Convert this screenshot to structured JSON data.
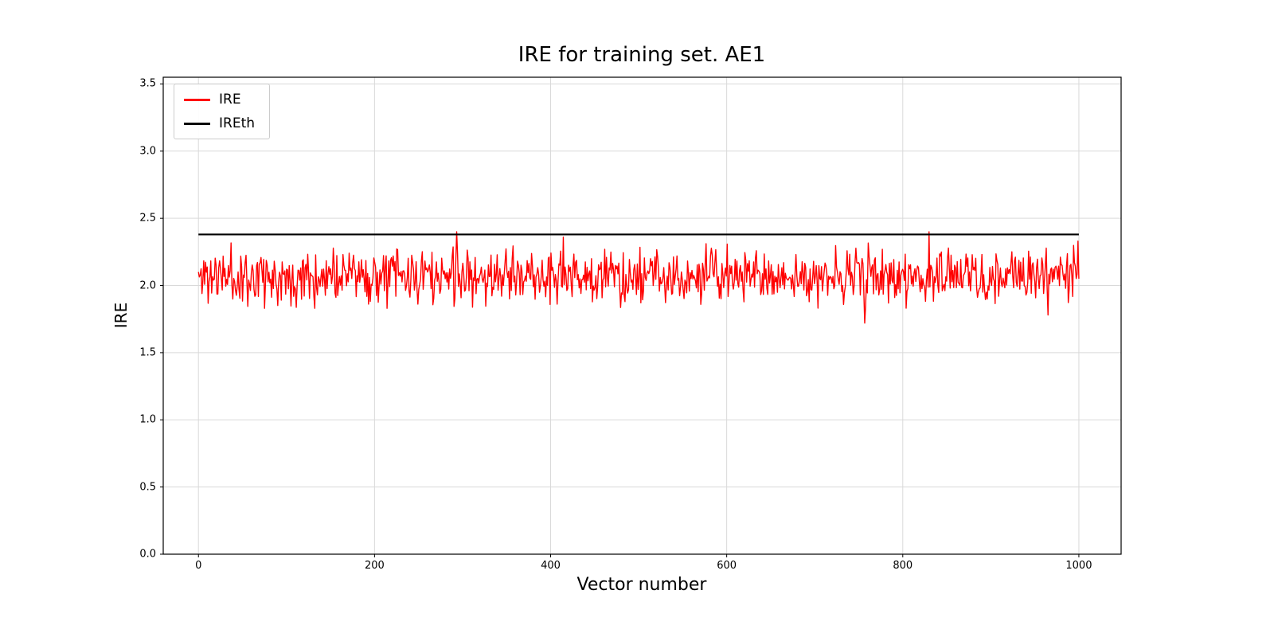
{
  "chart_data": {
    "type": "line",
    "title": "IRE for training set. AE1",
    "xlabel": "Vector number",
    "ylabel": "IRE",
    "xlim": [
      -40,
      1048
    ],
    "ylim": [
      0,
      3.55
    ],
    "xtick_values": [
      0,
      200,
      400,
      600,
      800,
      1000
    ],
    "xtick_labels": [
      "0",
      "200",
      "400",
      "600",
      "800",
      "1000"
    ],
    "ytick_values": [
      0,
      0.5,
      1.0,
      1.5,
      2.0,
      2.5,
      3.0,
      3.5
    ],
    "ytick_labels": [
      "0.0",
      "0.5",
      "1.0",
      "1.5",
      "2.0",
      "2.5",
      "3.0",
      "3.5"
    ],
    "grid": true,
    "grid_color": "#d9d9d9",
    "axes_edge_color": "#000000",
    "legend": {
      "position": "upper-left",
      "entries": [
        {
          "label": "IRE",
          "color": "#ff0000"
        },
        {
          "label": "IREth",
          "color": "#000000"
        }
      ]
    },
    "series": [
      {
        "name": "IRE",
        "color": "#ff0000",
        "line_width": 1.4,
        "n_points": 1000,
        "x_start": 0,
        "x_end": 1000,
        "mean": 2.07,
        "typical_band": [
          1.9,
          2.3
        ],
        "min": 1.72,
        "max": 2.4,
        "seed": 11,
        "anomalies": [
          {
            "x": 293,
            "y": 2.4
          },
          {
            "x": 757,
            "y": 1.72
          },
          {
            "x": 830,
            "y": 2.4
          },
          {
            "x": 965,
            "y": 1.78
          },
          {
            "x": 999,
            "y": 2.33
          }
        ]
      },
      {
        "name": "IREth",
        "color": "#000000",
        "line_width": 2.2,
        "constant": 2.38,
        "x_start": 0,
        "x_end": 1000
      }
    ]
  }
}
